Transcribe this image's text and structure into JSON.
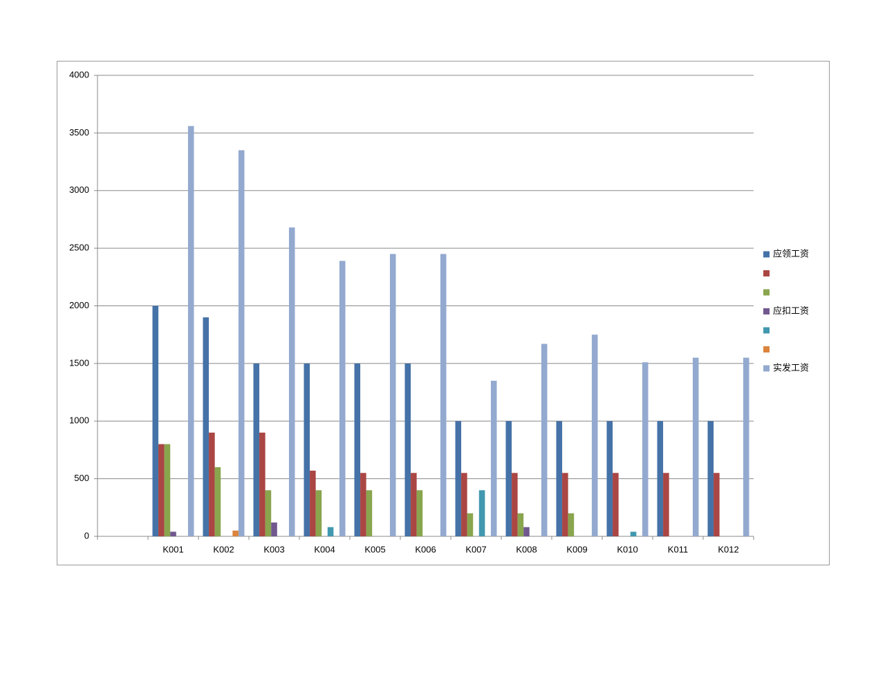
{
  "chart_data": {
    "type": "bar",
    "categories": [
      null,
      "K001",
      "K002",
      "K003",
      "K004",
      "K005",
      "K006",
      "K007",
      "K008",
      "K009",
      "K010",
      "K011",
      "K012"
    ],
    "series": [
      {
        "name": "应领工资",
        "color": "#4572a7",
        "values": [
          null,
          2000,
          1900,
          1500,
          1500,
          1500,
          1500,
          1000,
          1000,
          1000,
          1000,
          1000,
          1000
        ]
      },
      {
        "name": null,
        "color": "#aa4643",
        "values": [
          null,
          800,
          900,
          900,
          570,
          550,
          550,
          550,
          550,
          550,
          550,
          550,
          550
        ]
      },
      {
        "name": null,
        "color": "#89a54e",
        "values": [
          null,
          800,
          600,
          400,
          400,
          400,
          400,
          200,
          200,
          200,
          null,
          null,
          null
        ]
      },
      {
        "name": "应扣工资",
        "color": "#71588f",
        "values": [
          null,
          40,
          null,
          120,
          null,
          null,
          null,
          null,
          80,
          null,
          null,
          null,
          null
        ]
      },
      {
        "name": null,
        "color": "#4198af",
        "values": [
          null,
          null,
          null,
          null,
          80,
          null,
          null,
          400,
          null,
          null,
          40,
          null,
          null
        ]
      },
      {
        "name": null,
        "color": "#db843d",
        "values": [
          null,
          null,
          50,
          null,
          null,
          null,
          null,
          null,
          null,
          null,
          null,
          null,
          null
        ]
      },
      {
        "name": "实发工资",
        "color": "#93a9cf",
        "values": [
          null,
          3560,
          3350,
          2680,
          2390,
          2450,
          2450,
          1350,
          1670,
          1750,
          1510,
          1550,
          1550
        ]
      }
    ],
    "ylim": [
      0,
      4000
    ],
    "yticks": [
      0,
      500,
      1000,
      1500,
      2000,
      2500,
      3000,
      3500,
      4000
    ],
    "grid": true,
    "legend": "right"
  }
}
